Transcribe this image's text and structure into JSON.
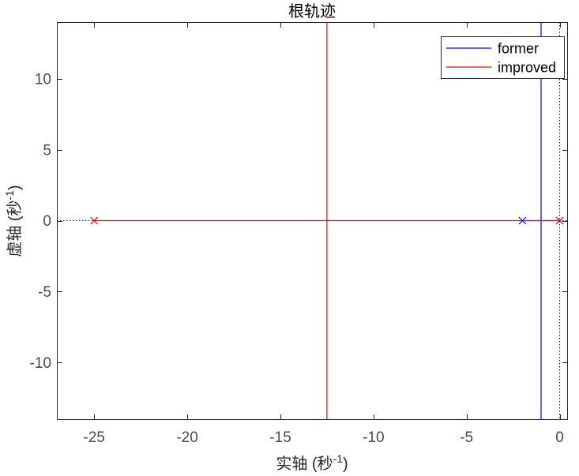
{
  "chart_data": {
    "type": "line",
    "title": "根轨迹",
    "xlabel": {
      "base": "实轴 (秒",
      "sup": "-1",
      "end": ")"
    },
    "ylabel": {
      "base": "虚轴 (秒",
      "sup": "-1",
      "end": ")"
    },
    "xlim": [
      -27,
      0.4
    ],
    "ylim": [
      -14,
      14
    ],
    "xticks": [
      -25,
      -20,
      -15,
      -10,
      -5,
      0
    ],
    "yticks": [
      -10,
      -5,
      0,
      5,
      10
    ],
    "grid": false,
    "legend_position": "top-right",
    "reference_lines": {
      "vertical_at_x": 0,
      "horizontal_at_y": 0
    },
    "series": [
      {
        "name": "former",
        "color": "#0000ff",
        "poles": [
          [
            -2,
            0
          ],
          [
            0,
            0
          ]
        ],
        "branches": [
          [
            [
              -2,
              0
            ],
            [
              -1,
              0
            ],
            [
              -1,
              14
            ]
          ],
          [
            [
              0,
              0
            ],
            [
              -1,
              0
            ],
            [
              -1,
              -14
            ]
          ]
        ]
      },
      {
        "name": "improved",
        "color": "#ff0000",
        "poles": [
          [
            -25,
            0
          ],
          [
            0,
            0
          ]
        ],
        "branches": [
          [
            [
              -25,
              0
            ],
            [
              -12.5,
              0
            ],
            [
              -12.5,
              14
            ]
          ],
          [
            [
              0,
              0
            ],
            [
              -12.5,
              0
            ],
            [
              -12.5,
              -14
            ]
          ]
        ]
      }
    ]
  }
}
